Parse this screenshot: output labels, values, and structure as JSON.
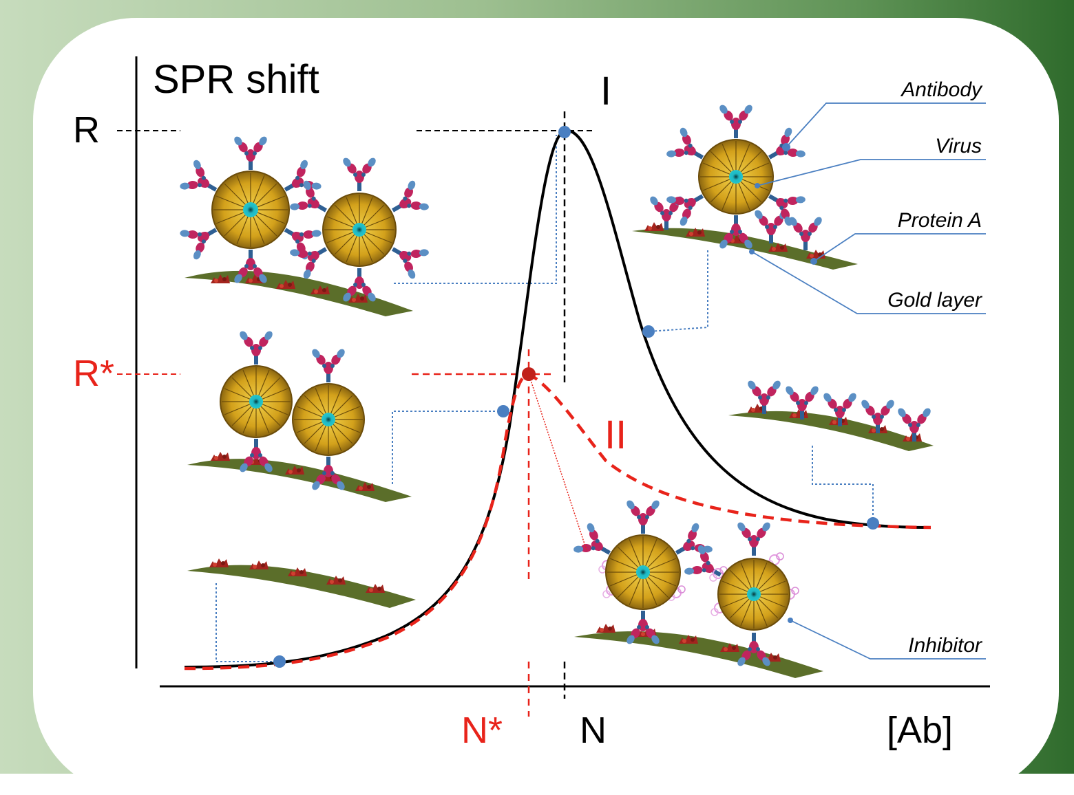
{
  "axis": {
    "y_title": "SPR shift",
    "x_title": "[Ab]",
    "y_tick_r": "R",
    "y_tick_r_star": "R*",
    "x_tick_n": "N",
    "x_tick_n_star": "N*"
  },
  "curves": {
    "curve_one_label": "I",
    "curve_two_label": "II"
  },
  "labels": {
    "antibody": "Antibody",
    "virus": "Virus",
    "protein_a": "Protein A",
    "gold_layer": "Gold layer",
    "inhibitor": "Inhibitor"
  },
  "colors": {
    "background_left": "#c7dcbd",
    "background_right": "#2f6b2c",
    "curve_one": "#000000",
    "curve_two": "#e8231a",
    "marker": "#4a7fc1",
    "peak_marker_two": "#c0201a",
    "gold_surface": "#5b6e2a",
    "virus_core": "#d4a21c",
    "virus_center": "#22c6cf",
    "antibody_heavy": "#c0245e",
    "antibody_light": "#2f5f93",
    "protein_a": "#a3241e",
    "inhibitor": "#e39be0"
  }
}
